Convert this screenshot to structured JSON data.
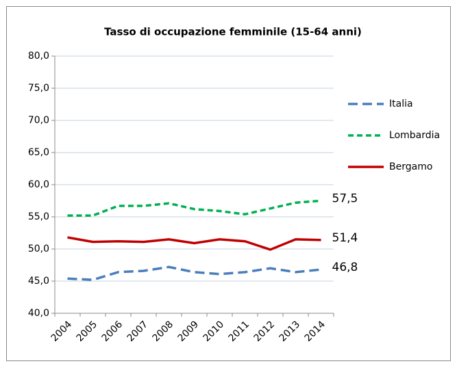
{
  "chart_data": {
    "type": "line",
    "title": "Tasso di occupazione femminile (15-64 anni)",
    "categories": [
      "2004",
      "2005",
      "2006",
      "2007",
      "2008",
      "2009",
      "2010",
      "2011",
      "2012",
      "2013",
      "2014"
    ],
    "series": [
      {
        "name": "Italia",
        "color": "#4a7ebb",
        "dash": "14 7",
        "values": [
          45.4,
          45.2,
          46.4,
          46.6,
          47.2,
          46.4,
          46.1,
          46.4,
          47.0,
          46.4,
          46.8
        ],
        "value_labels": [
          null,
          null,
          null,
          null,
          null,
          null,
          null,
          null,
          null,
          null,
          "46,8"
        ]
      },
      {
        "name": "Lombardia",
        "color": "#00b050",
        "dash": "8 5",
        "values": [
          55.2,
          55.2,
          56.7,
          56.7,
          57.1,
          56.2,
          55.9,
          55.4,
          56.3,
          57.2,
          57.5
        ],
        "value_labels": [
          null,
          null,
          null,
          null,
          null,
          null,
          null,
          null,
          null,
          null,
          "57,5"
        ]
      },
      {
        "name": "Bergamo",
        "color": "#c00000",
        "dash": "none",
        "values": [
          51.8,
          51.1,
          51.2,
          51.1,
          51.5,
          50.9,
          51.5,
          51.2,
          49.9,
          51.5,
          51.4
        ],
        "value_labels": [
          null,
          null,
          null,
          null,
          null,
          null,
          null,
          null,
          null,
          null,
          "51,4"
        ]
      }
    ],
    "ylim": [
      40,
      80
    ],
    "yticks": [
      {
        "value": 40,
        "label": "40,0"
      },
      {
        "value": 45,
        "label": "45,0"
      },
      {
        "value": 50,
        "label": "50,0"
      },
      {
        "value": 55,
        "label": "55,0"
      },
      {
        "value": 60,
        "label": "60,0"
      },
      {
        "value": 65,
        "label": "65,0"
      },
      {
        "value": 70,
        "label": "70,0"
      },
      {
        "value": 75,
        "label": "75,0"
      },
      {
        "value": 80,
        "label": "80,0"
      }
    ],
    "grid": true,
    "legend": "right"
  }
}
